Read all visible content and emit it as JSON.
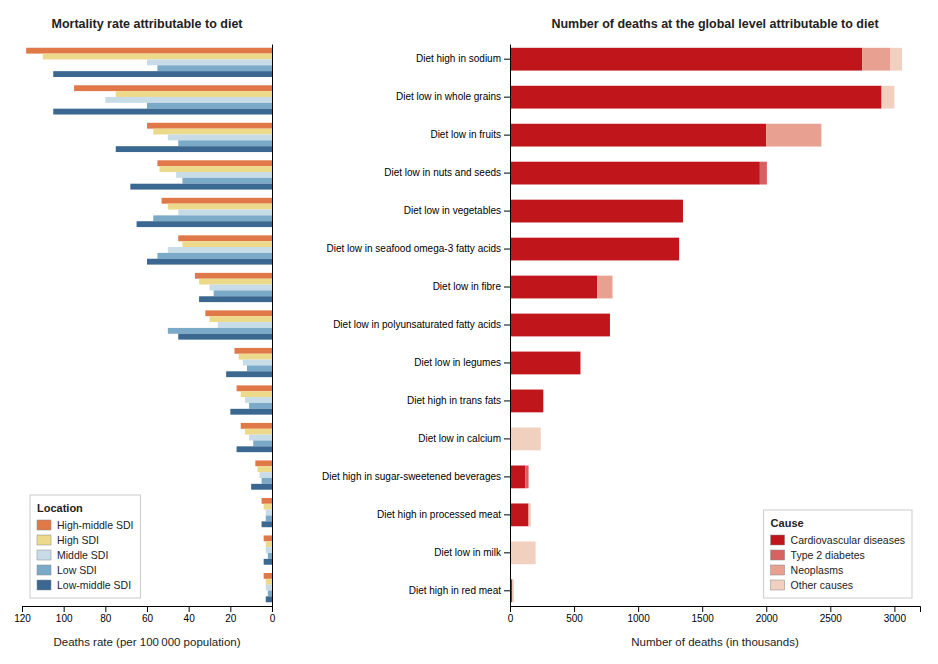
{
  "chart_data": [
    {
      "type": "bar",
      "orientation": "horizontal",
      "title": "Mortality rate attributable to diet",
      "xlabel": "Deaths rate (per 100 000 population)",
      "categories": [
        "Diet high in sodium",
        "Diet low in whole grains",
        "Diet low in fruits",
        "Diet low in nuts and seeds",
        "Diet low in vegetables",
        "Diet low in seafood omega-3 fatty acids",
        "Diet low in fibre",
        "Diet low in polyunsaturated fatty acids",
        "Diet low in legumes",
        "Diet high in trans fats",
        "Diet low in calcium",
        "Diet high in sugar-sweetened beverages",
        "Diet high in processed meat",
        "Diet low in milk",
        "Diet high in red meat"
      ],
      "series": [
        {
          "name": "High-middle SDI",
          "color": "#E07848",
          "values": [
            118,
            95,
            60,
            55,
            53,
            45,
            37,
            32,
            18,
            17,
            15,
            8,
            5,
            4,
            4
          ]
        },
        {
          "name": "High SDI",
          "color": "#EDD98A",
          "values": [
            110,
            75,
            57,
            54,
            50,
            43,
            35,
            30,
            16,
            15,
            13,
            7,
            4,
            3,
            3
          ]
        },
        {
          "name": "Middle SDI",
          "color": "#C8DCE8",
          "values": [
            60,
            80,
            50,
            46,
            45,
            50,
            30,
            26,
            14,
            13,
            11,
            6,
            3,
            3,
            3
          ]
        },
        {
          "name": "Low SDI",
          "color": "#7AAAC8",
          "values": [
            55,
            60,
            45,
            43,
            57,
            55,
            28,
            50,
            12,
            11,
            9,
            5,
            3,
            2,
            2
          ]
        },
        {
          "name": "Low-middle SDI",
          "color": "#3A6890",
          "values": [
            105,
            105,
            75,
            68,
            65,
            60,
            35,
            45,
            22,
            20,
            17,
            10,
            5,
            4,
            3
          ]
        }
      ],
      "xlim": [
        120,
        0
      ],
      "xticks": [
        0,
        20,
        40,
        60,
        80,
        100,
        120
      ],
      "grid": false,
      "legend": "lower left",
      "legend_title": "Location",
      "tick_labels": "x"
    },
    {
      "type": "bar",
      "orientation": "horizontal",
      "stacked": true,
      "title": "Number of deaths at the global level attributable to diet",
      "xlabel": "Number of deaths (in thousands)",
      "categories": [
        "Diet high in sodium",
        "Diet low in whole grains",
        "Diet low in fruits",
        "Diet low in nuts and seeds",
        "Diet low in vegetables",
        "Diet low in seafood omega-3 fatty acids",
        "Diet low in fibre",
        "Diet low in polyunsaturated fatty acids",
        "Diet low in legumes",
        "Diet high in trans fats",
        "Diet low in calcium",
        "Diet high in sugar-sweetened beverages",
        "Diet high in processed meat",
        "Diet low in milk",
        "Diet high in red meat"
      ],
      "series": [
        {
          "name": "Cardiovascular diseases",
          "color": "#C0151A",
          "values": [
            2750,
            2900,
            2000,
            1950,
            1350,
            1320,
            680,
            780,
            550,
            260,
            0,
            120,
            145,
            0,
            18
          ]
        },
        {
          "name": "Type 2 diabetes",
          "color": "#D96060",
          "values": [
            0,
            0,
            0,
            55,
            0,
            0,
            0,
            0,
            0,
            0,
            0,
            25,
            0,
            0,
            0
          ]
        },
        {
          "name": "Neoplasms",
          "color": "#E8A090",
          "values": [
            220,
            0,
            430,
            0,
            0,
            0,
            120,
            0,
            0,
            0,
            0,
            0,
            0,
            0,
            0
          ]
        },
        {
          "name": "Other causes",
          "color": "#F2D0C0",
          "values": [
            90,
            100,
            0,
            0,
            0,
            0,
            0,
            0,
            0,
            0,
            240,
            0,
            18,
            200,
            12
          ]
        }
      ],
      "xlim": [
        0,
        3200
      ],
      "xticks": [
        0,
        500,
        1000,
        1500,
        2000,
        2500,
        3000
      ],
      "grid": false,
      "legend": "lower right",
      "legend_title": "Cause"
    }
  ]
}
